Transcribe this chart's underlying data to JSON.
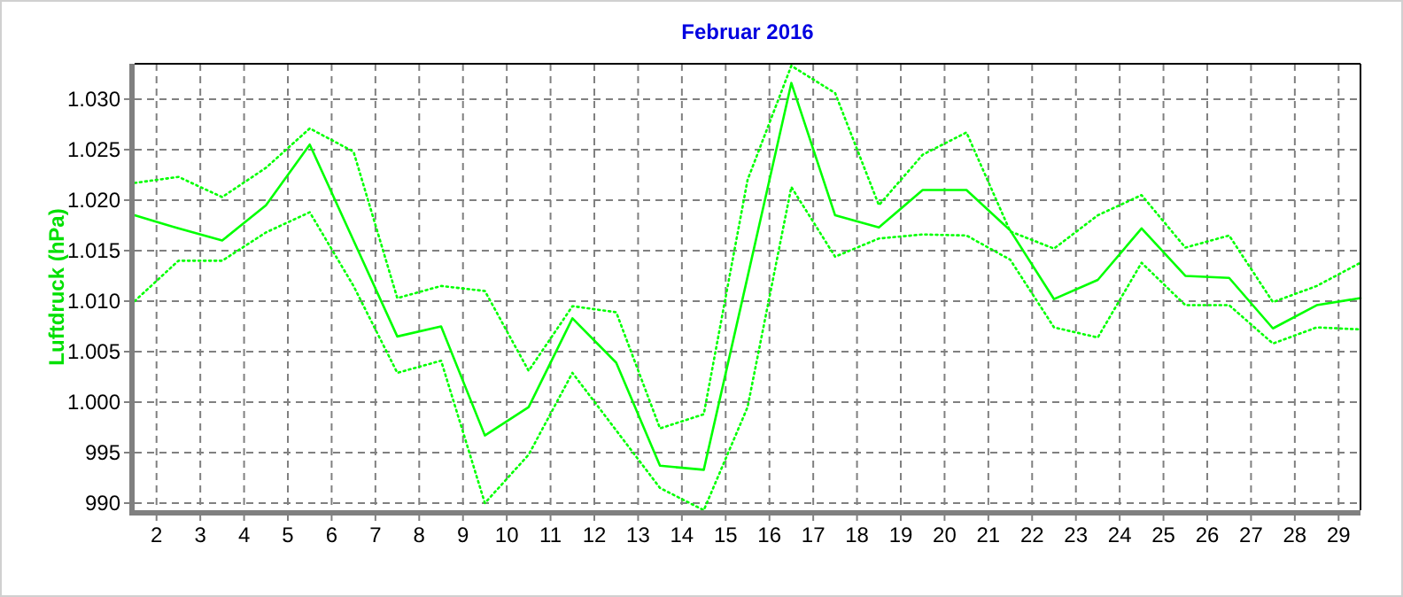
{
  "chart_data": {
    "type": "line",
    "title": "Februar 2016",
    "ylabel": "Luftdruck (hPa)",
    "x": [
      1.5,
      2.5,
      3.5,
      4.5,
      5.5,
      6.5,
      7.5,
      8.5,
      9.5,
      10.5,
      11.5,
      12.5,
      13.5,
      14.5,
      15.5,
      16.5,
      17.5,
      18.5,
      19.5,
      20.5,
      21.5,
      22.5,
      23.5,
      24.5,
      25.5,
      26.5,
      27.5,
      28.5,
      29.5
    ],
    "series": [
      {
        "color": "#00ff00",
        "line_style": "dotted",
        "values": [
          1021.7,
          1022.3,
          1020.3,
          1023.2,
          1027.1,
          1024.8,
          1010.3,
          1011.5,
          1011.0,
          1003.1,
          1009.5,
          1008.9,
          997.4,
          998.8,
          1022.0,
          1033.3,
          1030.6,
          1019.5,
          1024.5,
          1026.7,
          1016.9,
          1015.2,
          1018.5,
          1020.5,
          1015.3,
          1016.5,
          1009.9,
          1011.5,
          1013.8
        ]
      },
      {
        "color": "#00ff00",
        "line_style": "solid",
        "values": [
          1018.5,
          1017.2,
          1016.0,
          1019.5,
          1025.5,
          1016.0,
          1006.5,
          1007.5,
          996.7,
          999.5,
          1008.3,
          1003.9,
          993.7,
          993.3,
          1012.4,
          1031.6,
          1018.5,
          1017.3,
          1021.0,
          1021.0,
          1017.0,
          1010.2,
          1012.1,
          1017.2,
          1012.5,
          1012.3,
          1007.3,
          1009.6,
          1010.3
        ]
      },
      {
        "color": "#00ff00",
        "line_style": "dotted",
        "values": [
          1010.0,
          1014.0,
          1014.0,
          1016.8,
          1018.8,
          1011.5,
          1002.9,
          1004.1,
          990.0,
          994.8,
          1002.9,
          997.2,
          991.5,
          989.3,
          999.5,
          1021.3,
          1014.4,
          1016.2,
          1016.6,
          1016.5,
          1014.1,
          1007.4,
          1006.4,
          1013.8,
          1009.6,
          1009.6,
          1005.8,
          1007.4,
          1007.2
        ]
      }
    ],
    "xlim": [
      1.5,
      29.5
    ],
    "xticks": [
      2,
      3,
      4,
      5,
      6,
      7,
      8,
      9,
      10,
      11,
      12,
      13,
      14,
      15,
      16,
      17,
      18,
      19,
      20,
      21,
      22,
      23,
      24,
      25,
      26,
      27,
      28,
      29
    ],
    "ylim": [
      989.3,
      1033.5
    ],
    "yticks": [
      990,
      995,
      {
        "value": 1000,
        "label": "1.000"
      },
      {
        "value": 1005,
        "label": "1.005"
      },
      {
        "value": 1010,
        "label": "1.010"
      },
      {
        "value": 1015,
        "label": "1.015"
      },
      {
        "value": 1020,
        "label": "1.020"
      },
      {
        "value": 1025,
        "label": "1.025"
      },
      {
        "value": 1030,
        "label": "1.030"
      }
    ],
    "grid": true
  }
}
